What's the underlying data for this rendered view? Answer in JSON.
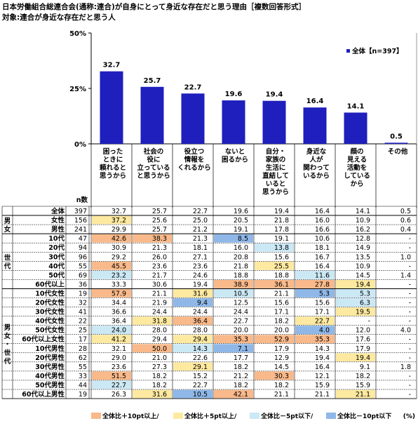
{
  "title": "日本労働組合総連合会(通称:連合)が自身にとって身近な存在だと思う理由［複数回答形式］",
  "subtitle": "対象:連合が身近な存在だと思う人",
  "chart_data": {
    "type": "bar",
    "ylim": [
      0,
      50
    ],
    "yticks": [
      "0%",
      "25%",
      "50%"
    ],
    "legend_placement": "top-right",
    "series": [
      {
        "name": "全体【n=397】",
        "color": "#1f1fbd",
        "values": [
          32.7,
          25.7,
          22.7,
          19.6,
          19.4,
          16.4,
          14.1,
          0.5
        ]
      }
    ],
    "categories": [
      [
        "困った",
        "ときに",
        "頼れると",
        "思うから"
      ],
      [
        "社会の",
        "役に",
        "立っている",
        "と思うから"
      ],
      [
        "役立つ",
        "情報を",
        "くれるから"
      ],
      [
        "ないと",
        "困るから"
      ],
      [
        "自分・",
        "家族の",
        "生活に",
        "直結して",
        "いると",
        "思うから"
      ],
      [
        "身近な",
        "人が",
        "関わって",
        "いるから"
      ],
      [
        "顔の",
        "見える",
        "活動を",
        "している",
        "から"
      ],
      [
        "その他"
      ]
    ]
  },
  "table": {
    "n_header": "n数",
    "rows": [
      {
        "group": "",
        "label": "全体",
        "n": "397",
        "v": [
          "32.7",
          "25.7",
          "22.7",
          "19.6",
          "19.4",
          "16.4",
          "14.1",
          "0.5"
        ]
      },
      {
        "group": "男女",
        "label": "女性",
        "n": "156",
        "v": [
          "37.2",
          "25.6",
          "25.0",
          "20.5",
          "21.8",
          "16.0",
          "10.9",
          "0.6"
        ]
      },
      {
        "group": "男女",
        "label": "男性",
        "n": "241",
        "v": [
          "29.9",
          "25.7",
          "21.2",
          "19.1",
          "17.8",
          "16.6",
          "16.2",
          "0.4"
        ]
      },
      {
        "group": "世代",
        "label": "10代",
        "n": "47",
        "v": [
          "42.6",
          "38.3",
          "21.3",
          "8.5",
          "19.1",
          "10.6",
          "12.8",
          "-"
        ]
      },
      {
        "group": "世代",
        "label": "20代",
        "n": "94",
        "v": [
          "30.9",
          "21.3",
          "18.1",
          "16.0",
          "13.8",
          "18.1",
          "14.9",
          "-"
        ]
      },
      {
        "group": "世代",
        "label": "30代",
        "n": "96",
        "v": [
          "29.2",
          "26.0",
          "27.1",
          "20.8",
          "15.6",
          "16.7",
          "13.5",
          "1.0"
        ]
      },
      {
        "group": "世代",
        "label": "40代",
        "n": "55",
        "v": [
          "45.5",
          "23.6",
          "23.6",
          "21.8",
          "25.5",
          "16.4",
          "10.9",
          "-"
        ]
      },
      {
        "group": "世代",
        "label": "50代",
        "n": "69",
        "v": [
          "23.2",
          "21.7",
          "24.6",
          "18.8",
          "18.8",
          "11.6",
          "14.5",
          "1.4"
        ]
      },
      {
        "group": "世代",
        "label": "60代以上",
        "n": "36",
        "v": [
          "33.3",
          "30.6",
          "19.4",
          "38.9",
          "36.1",
          "27.8",
          "19.4",
          "-"
        ]
      },
      {
        "group": "男女・世代",
        "label": "10代女性",
        "n": "19",
        "v": [
          "57.9",
          "21.1",
          "31.6",
          "10.5",
          "21.1",
          "5.3",
          "5.3",
          "-"
        ]
      },
      {
        "group": "男女・世代",
        "label": "20代女性",
        "n": "32",
        "v": [
          "34.4",
          "21.9",
          "9.4",
          "12.5",
          "15.6",
          "15.6",
          "6.3",
          "-"
        ]
      },
      {
        "group": "男女・世代",
        "label": "30代女性",
        "n": "41",
        "v": [
          "36.6",
          "24.4",
          "24.4",
          "24.4",
          "17.1",
          "17.1",
          "19.5",
          "-"
        ]
      },
      {
        "group": "男女・世代",
        "label": "40代女性",
        "n": "22",
        "v": [
          "36.4",
          "31.8",
          "36.4",
          "22.7",
          "18.2",
          "22.7",
          "-",
          "-"
        ]
      },
      {
        "group": "男女・世代",
        "label": "50代女性",
        "n": "25",
        "v": [
          "24.0",
          "28.0",
          "28.0",
          "20.0",
          "20.0",
          "4.0",
          "12.0",
          "4.0"
        ]
      },
      {
        "group": "男女・世代",
        "label": "60代以上女性",
        "n": "17",
        "v": [
          "41.2",
          "29.4",
          "29.4",
          "35.3",
          "52.9",
          "35.3",
          "17.6",
          "-"
        ]
      },
      {
        "group": "男女・世代",
        "label": "10代男性",
        "n": "28",
        "v": [
          "32.1",
          "50.0",
          "14.3",
          "7.1",
          "17.9",
          "14.3",
          "17.9",
          "-"
        ]
      },
      {
        "group": "男女・世代",
        "label": "20代男性",
        "n": "62",
        "v": [
          "29.0",
          "21.0",
          "22.6",
          "17.7",
          "12.9",
          "19.4",
          "19.4",
          "-"
        ]
      },
      {
        "group": "男女・世代",
        "label": "30代男性",
        "n": "55",
        "v": [
          "23.6",
          "27.3",
          "29.1",
          "18.2",
          "14.5",
          "16.4",
          "9.1",
          "1.8"
        ]
      },
      {
        "group": "男女・世代",
        "label": "40代男性",
        "n": "33",
        "v": [
          "51.5",
          "18.2",
          "15.2",
          "21.2",
          "30.3",
          "12.1",
          "18.2",
          "-"
        ]
      },
      {
        "group": "男女・世代",
        "label": "50代男性",
        "n": "44",
        "v": [
          "22.7",
          "18.2",
          "22.7",
          "18.2",
          "18.2",
          "15.9",
          "15.9",
          "-"
        ]
      },
      {
        "group": "男女・世代",
        "label": "60代以上男性",
        "n": "19",
        "v": [
          "26.3",
          "31.6",
          "10.5",
          "42.1",
          "21.1",
          "21.1",
          "21.1",
          "-"
        ]
      }
    ],
    "highlight_colors": {
      "plus10": "#f9b98a",
      "plus5": "#fde9a0",
      "minus5": "#cbe8f5",
      "minus10": "#8fb8e8"
    },
    "highlights": [
      {
        "r": 1,
        "c": 0,
        "k": "plus5"
      },
      {
        "r": 3,
        "c": 0,
        "k": "plus10"
      },
      {
        "r": 3,
        "c": 1,
        "k": "plus10"
      },
      {
        "r": 3,
        "c": 3,
        "k": "minus10"
      },
      {
        "r": 3,
        "c": 6,
        "k": "none"
      },
      {
        "r": 4,
        "c": 4,
        "k": "minus5"
      },
      {
        "r": 6,
        "c": 0,
        "k": "plus10"
      },
      {
        "r": 6,
        "c": 4,
        "k": "plus5"
      },
      {
        "r": 7,
        "c": 0,
        "k": "minus5"
      },
      {
        "r": 7,
        "c": 4,
        "k": "none"
      },
      {
        "r": 7,
        "c": 5,
        "k": "minus5"
      },
      {
        "r": 8,
        "c": 3,
        "k": "plus10"
      },
      {
        "r": 8,
        "c": 4,
        "k": "plus10"
      },
      {
        "r": 8,
        "c": 5,
        "k": "plus10"
      },
      {
        "r": 8,
        "c": 6,
        "k": "plus5"
      },
      {
        "r": 9,
        "c": 0,
        "k": "plus10"
      },
      {
        "r": 9,
        "c": 2,
        "k": "plus5"
      },
      {
        "r": 9,
        "c": 3,
        "k": "minus5"
      },
      {
        "r": 9,
        "c": 5,
        "k": "minus10"
      },
      {
        "r": 9,
        "c": 6,
        "k": "minus5"
      },
      {
        "r": 10,
        "c": 2,
        "k": "minus10"
      },
      {
        "r": 10,
        "c": 6,
        "k": "minus5"
      },
      {
        "r": 11,
        "c": 6,
        "k": "plus5"
      },
      {
        "r": 12,
        "c": 1,
        "k": "plus5"
      },
      {
        "r": 12,
        "c": 2,
        "k": "plus10"
      },
      {
        "r": 12,
        "c": 5,
        "k": "plus5"
      },
      {
        "r": 13,
        "c": 0,
        "k": "minus5"
      },
      {
        "r": 13,
        "c": 5,
        "k": "minus10"
      },
      {
        "r": 14,
        "c": 0,
        "k": "plus5"
      },
      {
        "r": 14,
        "c": 2,
        "k": "plus5"
      },
      {
        "r": 14,
        "c": 3,
        "k": "plus10"
      },
      {
        "r": 14,
        "c": 4,
        "k": "plus10"
      },
      {
        "r": 14,
        "c": 5,
        "k": "plus10"
      },
      {
        "r": 15,
        "c": 1,
        "k": "plus10"
      },
      {
        "r": 15,
        "c": 2,
        "k": "minus5"
      },
      {
        "r": 15,
        "c": 3,
        "k": "minus10"
      },
      {
        "r": 16,
        "c": 6,
        "k": "plus5"
      },
      {
        "r": 17,
        "c": 2,
        "k": "plus5"
      },
      {
        "r": 18,
        "c": 0,
        "k": "plus10"
      },
      {
        "r": 18,
        "c": 4,
        "k": "plus10"
      },
      {
        "r": 19,
        "c": 0,
        "k": "minus5"
      },
      {
        "r": 20,
        "c": 1,
        "k": "plus5"
      },
      {
        "r": 20,
        "c": 2,
        "k": "minus10"
      },
      {
        "r": 20,
        "c": 3,
        "k": "plus10"
      },
      {
        "r": 20,
        "c": 6,
        "k": "plus5"
      }
    ]
  },
  "footer": {
    "legend": [
      {
        "key": "plus10",
        "label": "全体比＋10pt以上/"
      },
      {
        "key": "plus5",
        "label": "全体比＋5pt以上/"
      },
      {
        "key": "minus5",
        "label": "全体比－5pt以下/"
      },
      {
        "key": "minus10",
        "label": "全体比－10pt以下"
      }
    ],
    "unit": "(%)"
  }
}
